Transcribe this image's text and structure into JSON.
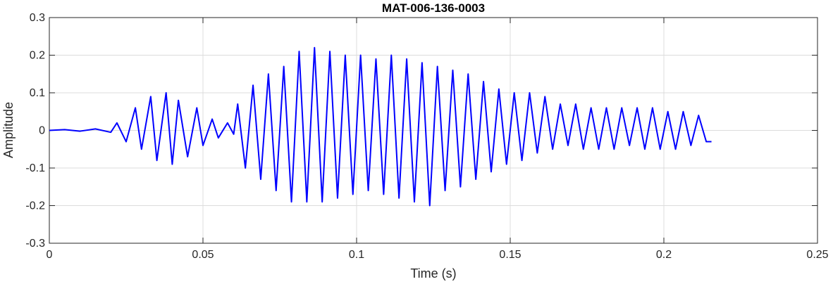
{
  "chart_data": {
    "type": "line",
    "title": "MAT-006-136-0003",
    "xlabel": "Time (s)",
    "ylabel": "Amplitude",
    "xlim": [
      0,
      0.25
    ],
    "ylim": [
      -0.3,
      0.3
    ],
    "xticks": [
      0,
      0.05,
      0.1,
      0.15,
      0.2,
      0.25
    ],
    "xtick_labels": [
      "0",
      "0.05",
      "0.1",
      "0.15",
      "0.2",
      "0.25"
    ],
    "yticks": [
      -0.3,
      -0.2,
      -0.1,
      0,
      0.1,
      0.2,
      0.3
    ],
    "ytick_labels": [
      "-0.3",
      "-0.2",
      "-0.1",
      "0",
      "0.1",
      "0.2",
      "0.3"
    ],
    "grid": true,
    "line_color": "#0000ff",
    "series": [
      {
        "x": [
          0,
          0.005,
          0.01,
          0.015,
          0.02,
          0.022,
          0.025,
          0.028,
          0.03,
          0.033,
          0.035,
          0.038,
          0.04,
          0.042,
          0.045,
          0.048,
          0.05,
          0.053,
          0.055,
          0.058,
          0.06,
          0.0613,
          0.0638,
          0.0663,
          0.0688,
          0.0713,
          0.0738,
          0.0763,
          0.0788,
          0.0813,
          0.0838,
          0.0863,
          0.0888,
          0.0913,
          0.0938,
          0.0963,
          0.0988,
          0.1013,
          0.1038,
          0.1063,
          0.1088,
          0.1113,
          0.1138,
          0.1163,
          0.1188,
          0.1213,
          0.1238,
          0.1263,
          0.1288,
          0.1313,
          0.1338,
          0.1363,
          0.1388,
          0.1413,
          0.1438,
          0.1463,
          0.1488,
          0.1513,
          0.1538,
          0.1563,
          0.1588,
          0.1613,
          0.1638,
          0.1663,
          0.1688,
          0.1713,
          0.1738,
          0.1763,
          0.1788,
          0.1813,
          0.1838,
          0.1863,
          0.1888,
          0.1913,
          0.1938,
          0.1963,
          0.1988,
          0.2013,
          0.2038,
          0.2063,
          0.2088,
          0.2113,
          0.2138,
          0.2155
        ],
        "y": [
          0,
          0.002,
          -0.002,
          0.004,
          -0.005,
          0.02,
          -0.03,
          0.06,
          -0.05,
          0.09,
          -0.08,
          0.1,
          -0.09,
          0.08,
          -0.07,
          0.06,
          -0.04,
          0.03,
          -0.02,
          0.02,
          -0.01,
          0.07,
          -0.1,
          0.12,
          -0.13,
          0.15,
          -0.16,
          0.17,
          -0.19,
          0.21,
          -0.19,
          0.22,
          -0.19,
          0.21,
          -0.18,
          0.2,
          -0.17,
          0.2,
          -0.16,
          0.19,
          -0.17,
          0.2,
          -0.18,
          0.19,
          -0.19,
          0.18,
          -0.2,
          0.17,
          -0.16,
          0.16,
          -0.15,
          0.15,
          -0.13,
          0.13,
          -0.11,
          0.11,
          -0.09,
          0.1,
          -0.08,
          0.1,
          -0.06,
          0.09,
          -0.05,
          0.07,
          -0.04,
          0.07,
          -0.05,
          0.06,
          -0.05,
          0.06,
          -0.05,
          0.06,
          -0.04,
          0.06,
          -0.05,
          0.06,
          -0.05,
          0.05,
          -0.05,
          0.05,
          -0.04,
          0.04,
          -0.03,
          -0.03
        ]
      }
    ]
  }
}
